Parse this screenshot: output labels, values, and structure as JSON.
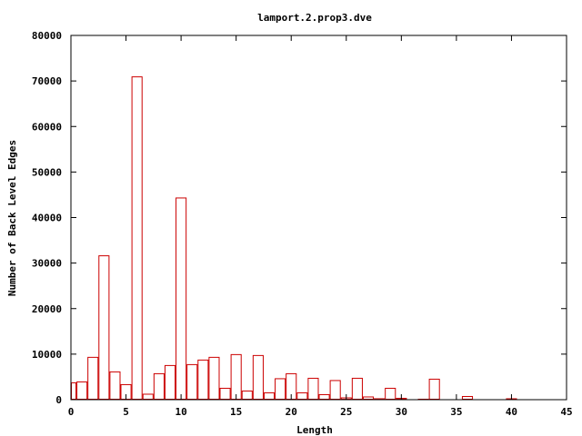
{
  "chart_data": {
    "type": "bar",
    "title": "lamport.2.prop3.dve",
    "xlabel": "Length",
    "ylabel": "Number of Back Level Edges",
    "xlim": [
      0,
      45
    ],
    "ylim": [
      0,
      80000
    ],
    "xticks": [
      0,
      5,
      10,
      15,
      20,
      25,
      30,
      35,
      40,
      45
    ],
    "yticks": [
      0,
      10000,
      20000,
      30000,
      40000,
      50000,
      60000,
      70000,
      80000
    ],
    "grid": false,
    "legend": "none",
    "bar_color": "#cc0000",
    "bar_width": 1,
    "x": [
      0,
      1,
      2,
      3,
      4,
      5,
      6,
      7,
      8,
      9,
      10,
      11,
      12,
      13,
      14,
      15,
      16,
      17,
      18,
      19,
      20,
      21,
      22,
      23,
      24,
      25,
      26,
      27,
      28,
      29,
      30,
      31,
      32,
      33,
      34,
      35,
      36,
      37,
      38,
      39,
      40,
      41,
      42,
      43,
      44
    ],
    "values": [
      3800,
      4000,
      9400,
      31700,
      6200,
      3400,
      71000,
      1300,
      5800,
      7600,
      44400,
      7800,
      8800,
      9400,
      2600,
      10000,
      2000,
      9800,
      1600,
      4700,
      5800,
      1600,
      4800,
      1200,
      4300,
      500,
      4800,
      700,
      300,
      2600,
      400,
      0,
      200,
      4600,
      0,
      0,
      800,
      0,
      0,
      0,
      300,
      0,
      0,
      0,
      0
    ]
  }
}
